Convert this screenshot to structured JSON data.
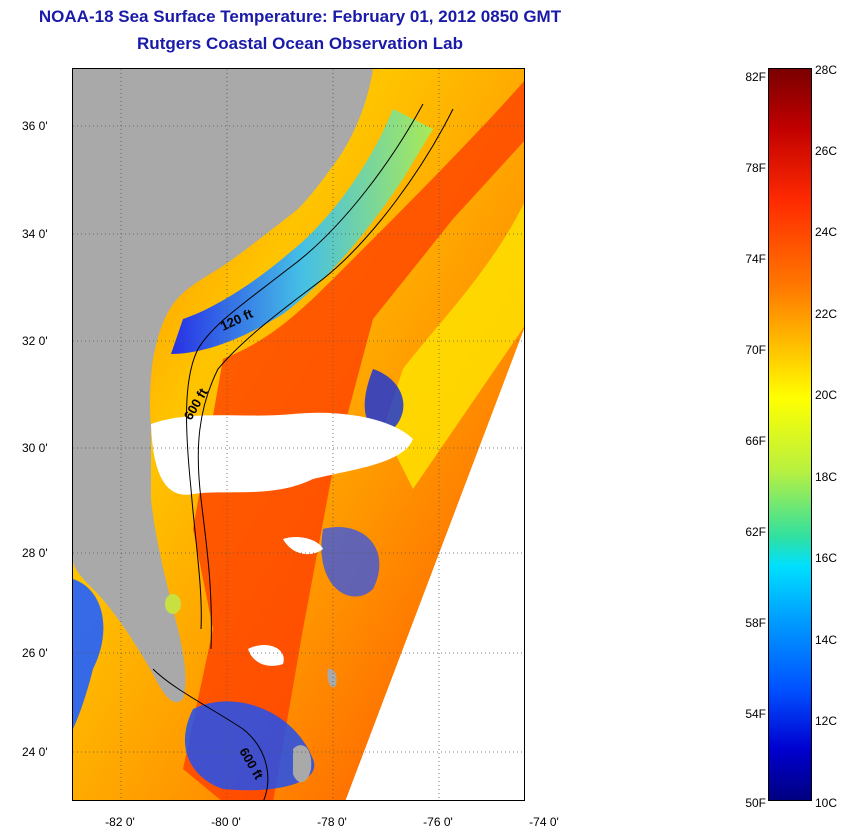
{
  "header": {
    "title": "NOAA-18 Sea Surface Temperature:  February 01, 2012 0850 GMT",
    "subtitle": "Rutgers Coastal Ocean Observation Lab"
  },
  "map": {
    "lat_labels": [
      "36 0'",
      "34 0'",
      "32 0'",
      "30 0'",
      "28 0'",
      "26 0'",
      "24 0'"
    ],
    "lon_labels": [
      "-82 0'",
      "-80 0'",
      "-78 0'",
      "-76 0'",
      "-74 0'"
    ],
    "contours": {
      "c120": "120 ft",
      "c600a": "600 ft",
      "c600b": "600 ft"
    },
    "colors": {
      "land": "#a9a9a9",
      "cloud": "#ffffff",
      "warm": "#ff3b00",
      "cold": "#1a3cff"
    }
  },
  "colorbar": {
    "fahrenheit": [
      "82F",
      "78F",
      "74F",
      "70F",
      "66F",
      "62F",
      "58F",
      "54F",
      "50F"
    ],
    "celsius": [
      "28C",
      "26C",
      "24C",
      "22C",
      "20C",
      "18C",
      "16C",
      "14C",
      "12C",
      "10C"
    ]
  }
}
